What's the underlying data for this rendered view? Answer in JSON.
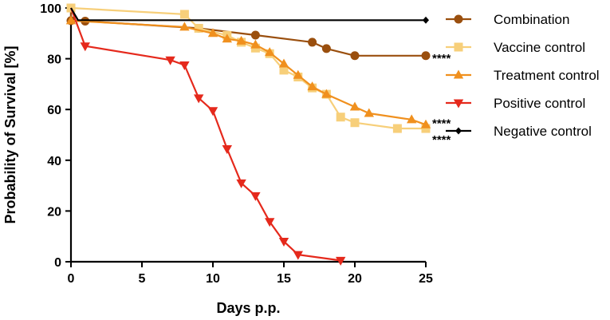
{
  "chart_data": {
    "type": "line",
    "title": "",
    "xlabel": "Days p.p.",
    "ylabel": "Probability of Survival [%]",
    "xlim": [
      0,
      25
    ],
    "ylim": [
      0,
      100
    ],
    "xticks": [
      0,
      5,
      10,
      15,
      20,
      25
    ],
    "yticks": [
      0,
      20,
      40,
      60,
      80,
      100
    ],
    "grid": false,
    "legend_position": "right",
    "series": [
      {
        "name": "Combination",
        "color": "#9a4f0e",
        "marker": "circle",
        "points": [
          [
            0,
            100
          ],
          [
            0,
            95
          ],
          [
            1,
            94.8
          ],
          [
            9,
            92
          ],
          [
            13,
            89.3
          ],
          [
            17,
            86.5
          ],
          [
            18,
            84
          ],
          [
            20,
            81.2
          ],
          [
            25,
            81.2
          ]
        ]
      },
      {
        "name": "Vaccine control",
        "color": "#f7cf7a",
        "marker": "square",
        "points": [
          [
            0,
            100
          ],
          [
            8,
            97.5
          ],
          [
            9,
            92
          ],
          [
            11,
            89.2
          ],
          [
            12,
            86.5
          ],
          [
            13,
            84.2
          ],
          [
            14,
            82
          ],
          [
            15,
            75.5
          ],
          [
            16,
            72.8
          ],
          [
            17,
            68.5
          ],
          [
            18,
            66
          ],
          [
            19,
            57
          ],
          [
            20,
            54.8
          ],
          [
            23,
            52.5
          ],
          [
            25,
            52.5
          ]
        ]
      },
      {
        "name": "Treatment control",
        "color": "#f0901e",
        "marker": "triangle-up",
        "points": [
          [
            0,
            95
          ],
          [
            8,
            92.5
          ],
          [
            10,
            90
          ],
          [
            11,
            87.8
          ],
          [
            12,
            87
          ],
          [
            13,
            85.5
          ],
          [
            14,
            82.5
          ],
          [
            15,
            78
          ],
          [
            16,
            73.5
          ],
          [
            17,
            69
          ],
          [
            18,
            66
          ],
          [
            20,
            61
          ],
          [
            21,
            58.5
          ],
          [
            24,
            56
          ],
          [
            25,
            54
          ]
        ]
      },
      {
        "name": "Positive control",
        "color": "#e5291c",
        "marker": "triangle-down",
        "points": [
          [
            0,
            100
          ],
          [
            1,
            85
          ],
          [
            7,
            79.5
          ],
          [
            8,
            77.5
          ],
          [
            9,
            64.5
          ],
          [
            10,
            59.5
          ],
          [
            11,
            44.5
          ],
          [
            12,
            31
          ],
          [
            13,
            26
          ],
          [
            14,
            15.8
          ],
          [
            15,
            8
          ],
          [
            16,
            2.8
          ],
          [
            19,
            0.5
          ]
        ]
      },
      {
        "name": "Negative control",
        "color": "#000000",
        "marker": "diamond",
        "points": [
          [
            0,
            100
          ],
          [
            0.5,
            95.2
          ],
          [
            25,
            95.2
          ]
        ]
      }
    ],
    "annotations": [
      {
        "text": "****",
        "x": 25,
        "y": 81.2
      },
      {
        "text": "****",
        "x": 25,
        "y": 55.5
      },
      {
        "text": "****",
        "x": 25,
        "y": 49
      }
    ]
  }
}
